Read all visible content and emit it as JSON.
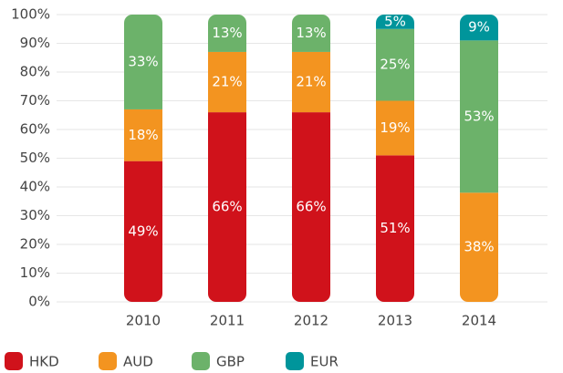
{
  "chart_data": {
    "type": "stacked_bar",
    "categories": [
      "2010",
      "2011",
      "2012",
      "2013",
      "2014"
    ],
    "series": [
      {
        "name": "HKD",
        "color": "#d0121b",
        "values": [
          49,
          66,
          66,
          51,
          0
        ],
        "value_labels": [
          "49%",
          "66%",
          "66%",
          "51%",
          null
        ]
      },
      {
        "name": "AUD",
        "color": "#f39420",
        "values": [
          18,
          21,
          21,
          19,
          38
        ],
        "value_labels": [
          "18%",
          "21%",
          "21%",
          "19%",
          "38%"
        ]
      },
      {
        "name": "GBP",
        "color": "#6cb26a",
        "values": [
          33,
          13,
          13,
          25,
          53
        ],
        "value_labels": [
          "33%",
          "13%",
          "13%",
          "25%",
          "53%"
        ]
      },
      {
        "name": "EUR",
        "color": "#00959b",
        "values": [
          0,
          0,
          0,
          5,
          9
        ],
        "value_labels": [
          null,
          null,
          null,
          "5%",
          "9%"
        ]
      }
    ],
    "ylim": [
      0,
      100
    ],
    "yticks": [
      {
        "value": 0,
        "label": "0%"
      },
      {
        "value": 10,
        "label": "10%"
      },
      {
        "value": 20,
        "label": "20%"
      },
      {
        "value": 30,
        "label": "30%"
      },
      {
        "value": 40,
        "label": "40%"
      },
      {
        "value": 50,
        "label": "50%"
      },
      {
        "value": 60,
        "label": "60%"
      },
      {
        "value": 70,
        "label": "70%"
      },
      {
        "value": 80,
        "label": "80%"
      },
      {
        "value": 90,
        "label": "90%"
      },
      {
        "value": 100,
        "label": "100%"
      }
    ],
    "grid": true,
    "legend": "bottom"
  }
}
